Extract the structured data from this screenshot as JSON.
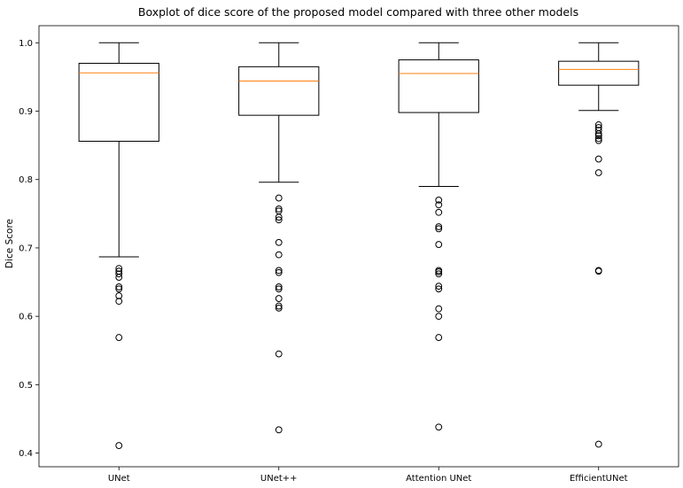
{
  "chart_data": {
    "type": "box",
    "title": "Boxplot of dice score of the proposed model compared with three other models",
    "xlabel": "",
    "ylabel": "Dice Score",
    "ylim": [
      0.38,
      1.025
    ],
    "yticks": [
      "0.4",
      "0.5",
      "0.6",
      "0.7",
      "0.8",
      "0.9",
      "1.0"
    ],
    "categories": [
      "UNet",
      "UNet++",
      "Attention UNet",
      "EfficientUNet"
    ],
    "box_color": "#000000",
    "median_color": "#ff7f0e",
    "boxes": [
      {
        "name": "UNet",
        "whisker_low": 0.687,
        "q1": 0.856,
        "median": 0.956,
        "q3": 0.97,
        "whisker_high": 1.0,
        "fliers": [
          0.67,
          0.666,
          0.662,
          0.657,
          0.643,
          0.64,
          0.63,
          0.622,
          0.569,
          0.411
        ]
      },
      {
        "name": "UNet++",
        "whisker_low": 0.796,
        "q1": 0.894,
        "median": 0.944,
        "q3": 0.965,
        "whisker_high": 1.0,
        "fliers": [
          0.773,
          0.757,
          0.754,
          0.745,
          0.741,
          0.708,
          0.69,
          0.667,
          0.664,
          0.643,
          0.64,
          0.626,
          0.615,
          0.612,
          0.545,
          0.434
        ]
      },
      {
        "name": "Attention UNet",
        "whisker_low": 0.79,
        "q1": 0.898,
        "median": 0.955,
        "q3": 0.975,
        "whisker_high": 1.0,
        "fliers": [
          0.77,
          0.763,
          0.752,
          0.731,
          0.728,
          0.705,
          0.667,
          0.665,
          0.662,
          0.644,
          0.64,
          0.611,
          0.6,
          0.569,
          0.438
        ]
      },
      {
        "name": "EfficientUNet",
        "whisker_low": 0.901,
        "q1": 0.938,
        "median": 0.961,
        "q3": 0.973,
        "whisker_high": 1.0,
        "fliers": [
          0.88,
          0.876,
          0.872,
          0.867,
          0.864,
          0.86,
          0.857,
          0.83,
          0.81,
          0.667,
          0.666,
          0.413
        ]
      }
    ]
  }
}
